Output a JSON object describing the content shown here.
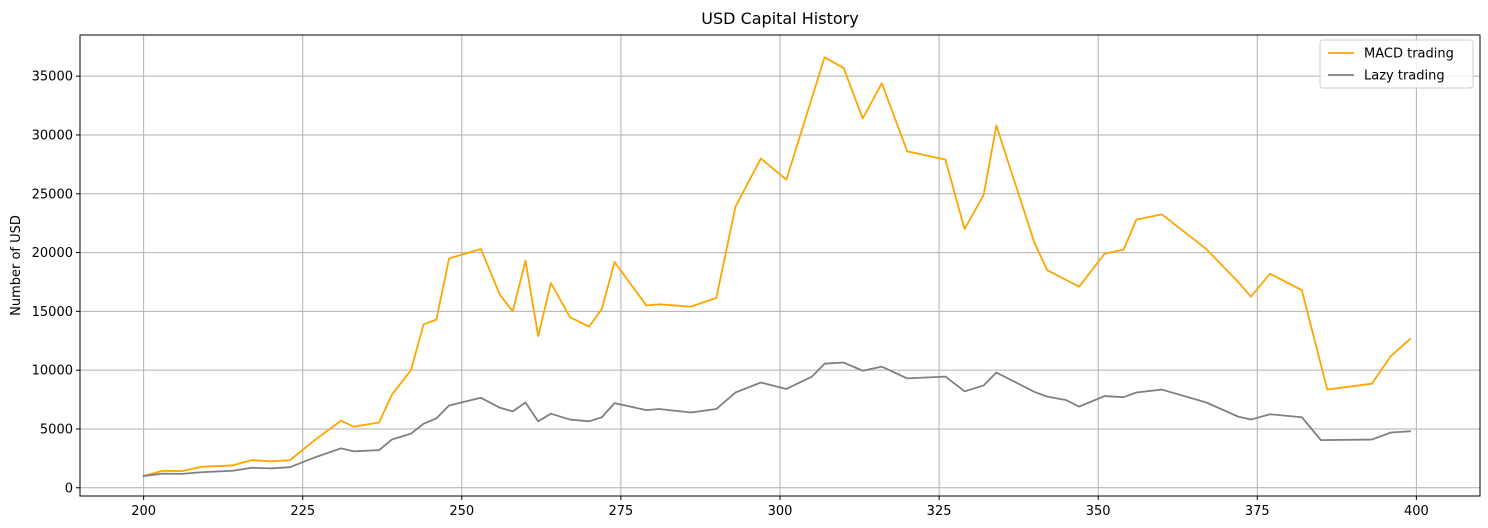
{
  "chart_data": {
    "type": "line",
    "title": "USD Capital History",
    "xlabel": "",
    "ylabel": "Number of USD",
    "xlim": [
      190,
      410
    ],
    "ylim": [
      -700,
      38500
    ],
    "xticks": [
      200,
      225,
      250,
      275,
      300,
      325,
      350,
      375,
      400
    ],
    "yticks": [
      0,
      5000,
      10000,
      15000,
      20000,
      25000,
      30000,
      35000
    ],
    "grid": true,
    "legend_position": "top-right",
    "series": [
      {
        "name": "MACD trading",
        "color": "#ffa500",
        "points": [
          [
            200,
            1000
          ],
          [
            203,
            1450
          ],
          [
            206,
            1420
          ],
          [
            209,
            1780
          ],
          [
            214,
            1900
          ],
          [
            217,
            2350
          ],
          [
            220,
            2250
          ],
          [
            223,
            2350
          ],
          [
            227,
            4100
          ],
          [
            231,
            5700
          ],
          [
            233,
            5200
          ],
          [
            237,
            5550
          ],
          [
            239,
            7900
          ],
          [
            242,
            10000
          ],
          [
            244,
            13900
          ],
          [
            246,
            14300
          ],
          [
            248,
            19500
          ],
          [
            253,
            20300
          ],
          [
            256,
            16400
          ],
          [
            258,
            15000
          ],
          [
            260,
            19300
          ],
          [
            262,
            12900
          ],
          [
            264,
            17400
          ],
          [
            267,
            14500
          ],
          [
            270,
            13700
          ],
          [
            272,
            15200
          ],
          [
            274,
            19200
          ],
          [
            279,
            15500
          ],
          [
            281,
            15600
          ],
          [
            286,
            15400
          ],
          [
            290,
            16150
          ],
          [
            293,
            23900
          ],
          [
            297,
            28000
          ],
          [
            301,
            26200
          ],
          [
            307,
            36600
          ],
          [
            310,
            35700
          ],
          [
            313,
            31400
          ],
          [
            316,
            34400
          ],
          [
            320,
            28600
          ],
          [
            326,
            27900
          ],
          [
            329,
            22000
          ],
          [
            332,
            24900
          ],
          [
            334,
            30800
          ],
          [
            340,
            20800
          ],
          [
            342,
            18500
          ],
          [
            347,
            17100
          ],
          [
            351,
            19900
          ],
          [
            354,
            20250
          ],
          [
            356,
            22800
          ],
          [
            360,
            23250
          ],
          [
            367,
            20300
          ],
          [
            372,
            17500
          ],
          [
            374,
            16250
          ],
          [
            377,
            18200
          ],
          [
            382,
            16800
          ],
          [
            386,
            8350
          ],
          [
            393,
            8850
          ],
          [
            396,
            11200
          ],
          [
            399,
            12650
          ]
        ]
      },
      {
        "name": "Lazy trading",
        "color": "#808080",
        "points": [
          [
            200,
            1000
          ],
          [
            203,
            1200
          ],
          [
            206,
            1180
          ],
          [
            209,
            1320
          ],
          [
            214,
            1450
          ],
          [
            217,
            1700
          ],
          [
            220,
            1650
          ],
          [
            223,
            1750
          ],
          [
            227,
            2600
          ],
          [
            231,
            3350
          ],
          [
            233,
            3100
          ],
          [
            237,
            3200
          ],
          [
            239,
            4100
          ],
          [
            242,
            4600
          ],
          [
            244,
            5450
          ],
          [
            246,
            5900
          ],
          [
            248,
            7000
          ],
          [
            253,
            7650
          ],
          [
            256,
            6800
          ],
          [
            258,
            6500
          ],
          [
            260,
            7250
          ],
          [
            262,
            5650
          ],
          [
            264,
            6300
          ],
          [
            267,
            5800
          ],
          [
            270,
            5650
          ],
          [
            272,
            6000
          ],
          [
            274,
            7200
          ],
          [
            279,
            6600
          ],
          [
            281,
            6700
          ],
          [
            286,
            6400
          ],
          [
            290,
            6700
          ],
          [
            293,
            8100
          ],
          [
            297,
            8950
          ],
          [
            301,
            8400
          ],
          [
            305,
            9450
          ],
          [
            307,
            10550
          ],
          [
            310,
            10650
          ],
          [
            313,
            9950
          ],
          [
            316,
            10300
          ],
          [
            320,
            9300
          ],
          [
            326,
            9450
          ],
          [
            329,
            8200
          ],
          [
            332,
            8700
          ],
          [
            334,
            9800
          ],
          [
            340,
            8150
          ],
          [
            342,
            7750
          ],
          [
            345,
            7450
          ],
          [
            347,
            6900
          ],
          [
            351,
            7800
          ],
          [
            354,
            7700
          ],
          [
            356,
            8100
          ],
          [
            360,
            8350
          ],
          [
            367,
            7250
          ],
          [
            372,
            6050
          ],
          [
            374,
            5800
          ],
          [
            377,
            6250
          ],
          [
            382,
            6000
          ],
          [
            385,
            4050
          ],
          [
            393,
            4100
          ],
          [
            396,
            4700
          ],
          [
            399,
            4800
          ]
        ]
      }
    ]
  }
}
